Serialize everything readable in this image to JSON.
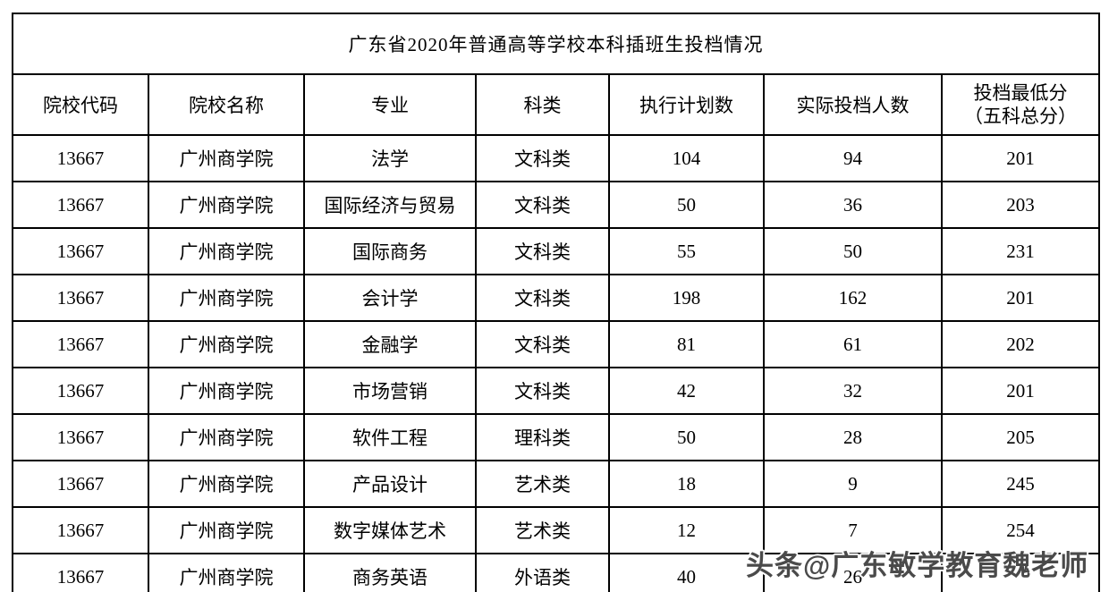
{
  "table": {
    "title": "广东省2020年普通高等学校本科插班生投档情况",
    "header": {
      "col_code": "院校代码",
      "col_name": "院校名称",
      "col_major": "专业",
      "col_category": "科类",
      "col_plan": "执行计划数",
      "col_actual": "实际投档人数",
      "col_min_line1": "投档最低分",
      "col_min_line2": "（五科总分）"
    },
    "rows": [
      {
        "code": "13667",
        "name": "广州商学院",
        "major": "法学",
        "category": "文科类",
        "plan": "104",
        "actual": "94",
        "min_score": "201"
      },
      {
        "code": "13667",
        "name": "广州商学院",
        "major": "国际经济与贸易",
        "category": "文科类",
        "plan": "50",
        "actual": "36",
        "min_score": "203"
      },
      {
        "code": "13667",
        "name": "广州商学院",
        "major": "国际商务",
        "category": "文科类",
        "plan": "55",
        "actual": "50",
        "min_score": "231"
      },
      {
        "code": "13667",
        "name": "广州商学院",
        "major": "会计学",
        "category": "文科类",
        "plan": "198",
        "actual": "162",
        "min_score": "201"
      },
      {
        "code": "13667",
        "name": "广州商学院",
        "major": "金融学",
        "category": "文科类",
        "plan": "81",
        "actual": "61",
        "min_score": "202"
      },
      {
        "code": "13667",
        "name": "广州商学院",
        "major": "市场营销",
        "category": "文科类",
        "plan": "42",
        "actual": "32",
        "min_score": "201"
      },
      {
        "code": "13667",
        "name": "广州商学院",
        "major": "软件工程",
        "category": "理科类",
        "plan": "50",
        "actual": "28",
        "min_score": "205"
      },
      {
        "code": "13667",
        "name": "广州商学院",
        "major": "产品设计",
        "category": "艺术类",
        "plan": "18",
        "actual": "9",
        "min_score": "245"
      },
      {
        "code": "13667",
        "name": "广州商学院",
        "major": "数字媒体艺术",
        "category": "艺术类",
        "plan": "12",
        "actual": "7",
        "min_score": "254"
      },
      {
        "code": "13667",
        "name": "广州商学院",
        "major": "商务英语",
        "category": "外语类",
        "plan": "40",
        "actual": "26",
        "min_score": ""
      }
    ],
    "border_color": "#000000",
    "text_color": "#000000"
  },
  "watermark": {
    "text": "头条@广东敏学教育魏老师",
    "color": "#4a4a4a"
  }
}
